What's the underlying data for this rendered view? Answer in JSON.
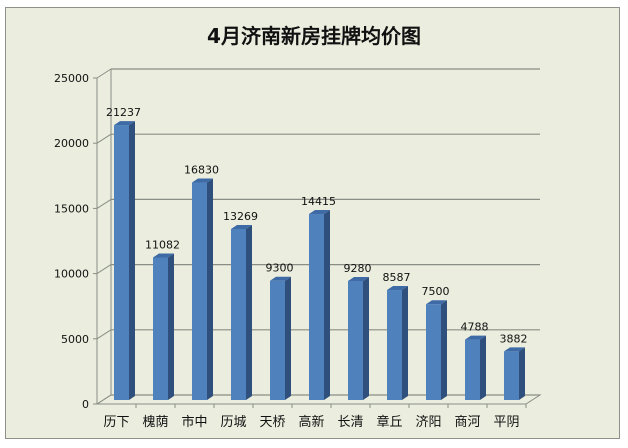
{
  "title": "4月济南新房挂牌均价图",
  "chart_data": {
    "type": "bar",
    "title": "4月济南新房挂牌均价图",
    "xlabel": "",
    "ylabel": "",
    "categories": [
      "历下",
      "槐荫",
      "市中",
      "历城",
      "天桥",
      "高新",
      "长清",
      "章丘",
      "济阳",
      "商河",
      "平阴"
    ],
    "values": [
      21237,
      11082,
      16830,
      13269,
      9300,
      14415,
      9280,
      8587,
      7500,
      4788,
      3882
    ],
    "ylim": [
      0,
      25000
    ],
    "yticks": [
      0,
      5000,
      10000,
      15000,
      20000,
      25000
    ],
    "grid": true,
    "legend": "none",
    "style": "3d-column",
    "bar_color": "#4f81bd"
  }
}
